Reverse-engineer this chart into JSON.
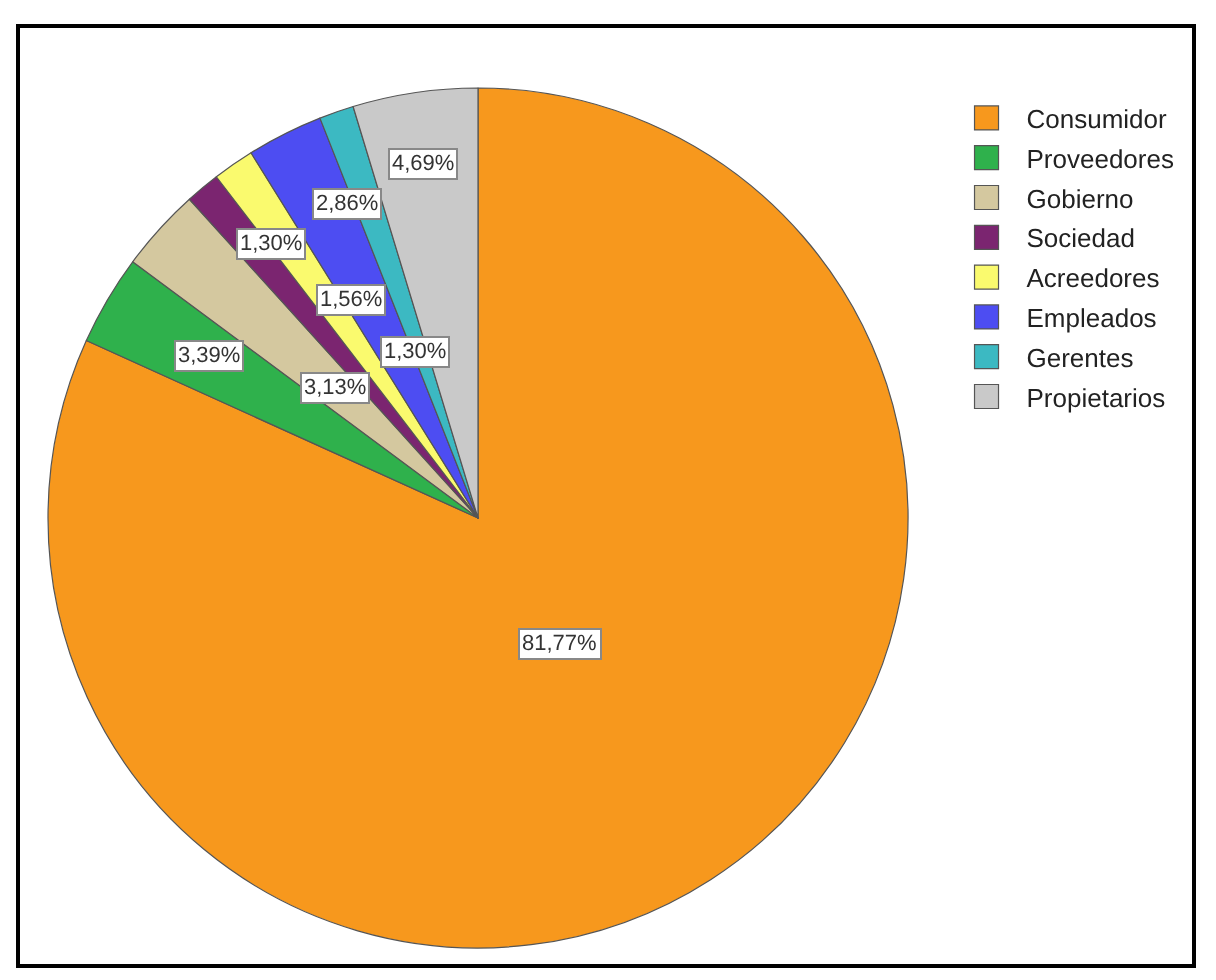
{
  "chart_data": {
    "type": "pie",
    "legend": "top right",
    "categories": [
      "Consumidor",
      "Proveedores",
      "Gobierno",
      "Sociedad",
      "Acreedores",
      "Empleados",
      "Gerentes",
      "Propietarios"
    ],
    "values": [
      81.77,
      3.39,
      3.13,
      1.3,
      1.56,
      2.86,
      1.3,
      4.69
    ],
    "value_labels": [
      "81,77%",
      "3,39%",
      "3,13%",
      "1,30%",
      "1,56%",
      "2,86%",
      "1,30%",
      "4,69%"
    ],
    "colors": [
      "#f7981d",
      "#2fb14c",
      "#d4c89f",
      "#7b2570",
      "#fafa6e",
      "#4d4df2",
      "#3cb9c2",
      "#c9c9c9"
    ]
  }
}
